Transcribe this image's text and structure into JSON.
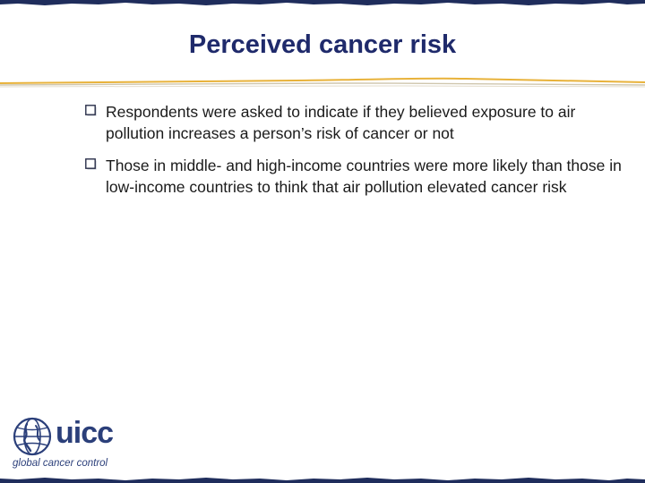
{
  "slide": {
    "title": "Perceived cancer risk",
    "bullets": [
      "Respondents were asked to indicate if they believed exposure to air pollution increases a person’s risk of cancer or not",
      "Those in middle- and high-income countries were more likely than those in low-income countries to think that air pollution elevated cancer risk"
    ]
  },
  "logo": {
    "wordmark": "uicc",
    "tagline": "global cancer control"
  },
  "colors": {
    "title": "#1f2a6b",
    "rule_gold": "#e8b23a",
    "edge_navy": "#1f2d5c",
    "logo_blue": "#2b3f7a",
    "text": "#1a1a1a"
  },
  "icons": {
    "bullet": "checkbox-outline-icon",
    "logo": "globe-icon"
  }
}
